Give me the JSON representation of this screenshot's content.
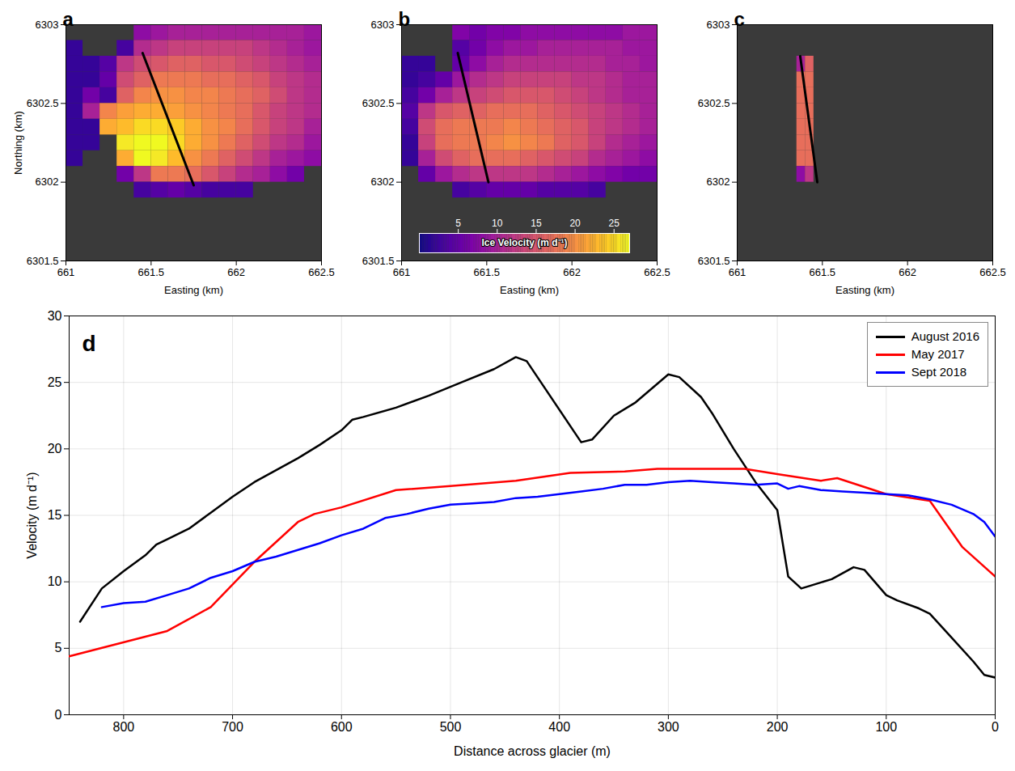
{
  "chart_data": [
    {
      "type": "heatmap",
      "title": "a",
      "xlabel": "Easting (km)",
      "ylabel": "Northing (km)",
      "xlim": [
        661,
        662.5
      ],
      "xticks": [
        661,
        661.5,
        662,
        662.5
      ],
      "ylim": [
        6301.5,
        6303
      ],
      "yticks": [
        6301.5,
        6302,
        6302.5,
        6303
      ],
      "color": "black",
      "easting": [
        661.05,
        661.15,
        661.25,
        661.35,
        661.45,
        661.55,
        661.65,
        661.75,
        661.85,
        661.95,
        662.05,
        662.15,
        662.25,
        662.35,
        662.45
      ],
      "northing": [
        6302.95,
        6302.85,
        6302.75,
        6302.65,
        6302.55,
        6302.45,
        6302.35,
        6302.25,
        6302.15,
        6302.05,
        6301.95
      ],
      "values": [
        [
          null,
          null,
          null,
          null,
          8,
          9,
          10,
          10,
          10,
          10,
          10,
          10,
          10,
          10,
          9
        ],
        [
          2,
          null,
          null,
          3,
          11,
          12,
          13,
          13,
          13,
          13,
          13,
          12,
          11,
          10,
          9
        ],
        [
          2,
          2,
          4,
          12,
          14,
          15,
          16,
          16,
          15,
          15,
          14,
          13,
          12,
          11,
          10
        ],
        [
          2,
          2,
          5,
          14,
          16,
          18,
          18,
          18,
          17,
          17,
          16,
          15,
          13,
          12,
          11
        ],
        [
          2,
          6,
          3,
          16,
          19,
          20,
          20,
          19,
          19,
          18,
          17,
          16,
          14,
          12,
          11
        ],
        [
          2,
          10,
          19,
          21,
          22,
          22,
          21,
          20,
          19,
          18,
          17,
          15,
          13,
          12,
          11
        ],
        [
          2,
          2,
          22,
          23,
          25,
          25,
          24,
          22,
          20,
          19,
          17,
          15,
          13,
          12,
          10
        ],
        [
          2,
          2,
          null,
          26,
          27,
          27,
          25,
          22,
          20,
          18,
          16,
          14,
          12,
          11,
          9
        ],
        [
          2,
          null,
          null,
          22,
          27,
          26,
          23,
          20,
          18,
          16,
          14,
          12,
          10,
          9,
          8
        ],
        [
          null,
          null,
          null,
          6,
          12,
          18,
          18,
          17,
          15,
          13,
          11,
          10,
          8,
          6,
          null
        ],
        [
          null,
          null,
          null,
          null,
          3,
          4,
          5,
          4,
          3,
          3,
          3,
          null,
          null,
          null,
          null
        ]
      ],
      "transect": {
        "easting": [
          661.45,
          661.75
        ],
        "northing": [
          6302.82,
          6301.98
        ]
      }
    },
    {
      "type": "heatmap",
      "title": "b",
      "xlabel": "Easting (km)",
      "xlim": [
        661,
        662.5
      ],
      "xticks": [
        661,
        661.5,
        662,
        662.5
      ],
      "ylim": [
        6301.5,
        6303
      ],
      "yticks": [
        6301.5,
        6302,
        6302.5,
        6303
      ],
      "color": "black",
      "easting": [
        661.05,
        661.15,
        661.25,
        661.35,
        661.45,
        661.55,
        661.65,
        661.75,
        661.85,
        661.95,
        662.05,
        662.15,
        662.25,
        662.35,
        662.45
      ],
      "northing": [
        6302.95,
        6302.85,
        6302.75,
        6302.65,
        6302.55,
        6302.45,
        6302.35,
        6302.25,
        6302.15,
        6302.05,
        6301.95
      ],
      "values": [
        [
          null,
          null,
          null,
          7,
          6,
          7,
          7,
          8,
          8,
          8,
          8,
          8,
          8,
          9,
          9
        ],
        [
          null,
          null,
          null,
          4,
          6,
          8,
          9,
          9,
          10,
          10,
          10,
          10,
          10,
          9,
          9
        ],
        [
          2,
          2,
          null,
          5,
          8,
          10,
          11,
          11,
          11,
          11,
          11,
          11,
          10,
          10,
          9
        ],
        [
          2,
          3,
          5,
          9,
          11,
          12,
          13,
          13,
          13,
          13,
          12,
          12,
          11,
          10,
          10
        ],
        [
          3,
          6,
          10,
          12,
          13,
          14,
          15,
          15,
          15,
          14,
          13,
          12,
          11,
          10,
          10
        ],
        [
          4,
          12,
          15,
          16,
          16,
          17,
          17,
          17,
          16,
          15,
          14,
          13,
          12,
          11,
          10
        ],
        [
          3,
          14,
          17,
          18,
          18,
          18,
          19,
          18,
          17,
          16,
          15,
          13,
          12,
          11,
          10
        ],
        [
          2,
          13,
          17,
          18,
          18,
          19,
          20,
          19,
          18,
          16,
          15,
          13,
          11,
          10,
          9
        ],
        [
          2,
          10,
          14,
          16,
          17,
          17,
          17,
          16,
          15,
          14,
          13,
          11,
          10,
          9,
          8
        ],
        [
          null,
          5,
          9,
          11,
          12,
          12,
          12,
          12,
          11,
          10,
          9,
          8,
          7,
          6,
          6
        ],
        [
          null,
          null,
          null,
          3,
          4,
          5,
          5,
          5,
          4,
          4,
          4,
          3,
          null,
          null,
          null
        ]
      ],
      "transect": {
        "easting": [
          661.33,
          661.51
        ],
        "northing": [
          6302.82,
          6302.0
        ]
      },
      "colorbar": {
        "label": "Ice Velocity (m d⁻¹)",
        "range": [
          0,
          27
        ],
        "ticks": [
          5,
          10,
          15,
          20,
          25
        ]
      }
    },
    {
      "type": "heatmap",
      "title": "c",
      "xlabel": "Easting (km)",
      "xlim": [
        661,
        662.5
      ],
      "xticks": [
        661,
        661.5,
        662,
        662.5
      ],
      "ylim": [
        6301.5,
        6303
      ],
      "yticks": [
        6301.5,
        6302,
        6302.5,
        6303
      ],
      "color": "black",
      "easting": [
        661.375,
        661.425
      ],
      "northing": [
        6302.75,
        6302.65,
        6302.55,
        6302.45,
        6302.35,
        6302.25,
        6302.15,
        6302.05
      ],
      "values": [
        [
          10,
          16
        ],
        [
          17,
          17
        ],
        [
          17,
          17
        ],
        [
          17,
          17
        ],
        [
          17,
          17
        ],
        [
          17,
          17
        ],
        [
          17,
          17
        ],
        [
          8,
          12
        ]
      ],
      "transect": {
        "easting": [
          661.37,
          661.47
        ],
        "northing": [
          6302.8,
          6302.0
        ]
      }
    },
    {
      "type": "line",
      "title": "d",
      "xlabel": "Distance across glacier (m)",
      "ylabel": "Velocity (m d⁻¹)",
      "xlim": [
        850,
        0
      ],
      "xticks": [
        0,
        100,
        200,
        300,
        400,
        500,
        600,
        700,
        800
      ],
      "ylim": [
        0,
        30
      ],
      "yticks": [
        0,
        5,
        10,
        15,
        20,
        25,
        30
      ],
      "grid": true,
      "legend": "top-right",
      "series": [
        {
          "name": "August 2016",
          "color": "#000000",
          "x": [
            840,
            820,
            800,
            780,
            770,
            760,
            740,
            720,
            700,
            680,
            660,
            640,
            620,
            600,
            590,
            580,
            550,
            520,
            490,
            460,
            440,
            430,
            380,
            370,
            350,
            330,
            300,
            290,
            270,
            260,
            240,
            220,
            200,
            190,
            178,
            170,
            150,
            130,
            120,
            100,
            90,
            70,
            60,
            40,
            20,
            10,
            0
          ],
          "values": [
            7,
            9.5,
            10.8,
            12,
            12.8,
            13.2,
            14,
            15.2,
            16.4,
            17.5,
            18.4,
            19.3,
            20.3,
            21.4,
            22.2,
            22.4,
            23.1,
            24,
            25,
            26,
            26.9,
            26.6,
            20.5,
            20.7,
            22.5,
            23.5,
            25.6,
            25.4,
            23.9,
            22.7,
            20,
            17.5,
            15.4,
            10.4,
            9.5,
            9.7,
            10.2,
            11.1,
            10.9,
            9,
            8.6,
            8,
            7.6,
            5.8,
            4,
            3,
            2.8
          ]
        },
        {
          "name": "May 2017",
          "color": "#ff0000",
          "x": [
            850,
            760,
            720,
            680,
            640,
            625,
            600,
            550,
            500,
            440,
            390,
            340,
            310,
            230,
            200,
            160,
            145,
            100,
            60,
            30,
            0
          ],
          "values": [
            4.4,
            6.3,
            8.1,
            11.5,
            14.5,
            15.1,
            15.6,
            16.9,
            17.2,
            17.6,
            18.2,
            18.3,
            18.5,
            18.5,
            18.1,
            17.6,
            17.8,
            16.6,
            16.1,
            12.6,
            10.4
          ]
        },
        {
          "name": "Sept 2018",
          "color": "#0000ff",
          "x": [
            820,
            800,
            780,
            760,
            740,
            720,
            700,
            680,
            660,
            640,
            620,
            600,
            580,
            560,
            540,
            520,
            500,
            480,
            460,
            440,
            420,
            400,
            380,
            360,
            340,
            320,
            300,
            280,
            260,
            240,
            220,
            200,
            190,
            180,
            160,
            140,
            120,
            100,
            80,
            60,
            40,
            20,
            10,
            0
          ],
          "values": [
            8.1,
            8.4,
            8.5,
            9,
            9.5,
            10.3,
            10.8,
            11.5,
            11.9,
            12.4,
            12.9,
            13.5,
            14,
            14.8,
            15.1,
            15.5,
            15.8,
            15.9,
            16,
            16.3,
            16.4,
            16.6,
            16.8,
            17,
            17.3,
            17.3,
            17.5,
            17.6,
            17.5,
            17.4,
            17.3,
            17.4,
            17,
            17.2,
            16.9,
            16.8,
            16.7,
            16.6,
            16.5,
            16.2,
            15.8,
            15.1,
            14.5,
            13.4
          ]
        }
      ]
    }
  ]
}
